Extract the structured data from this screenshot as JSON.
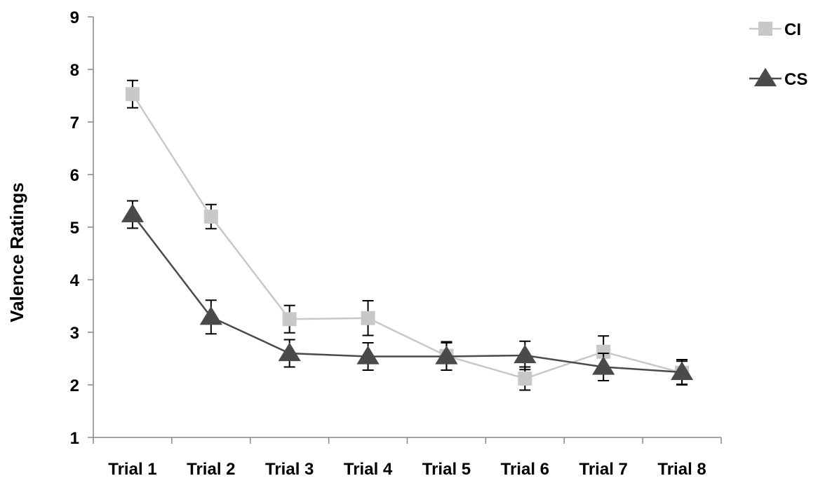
{
  "chart_data": {
    "type": "line",
    "title": "",
    "xlabel": "",
    "ylabel": "Valence Ratings",
    "ylim": [
      1,
      9
    ],
    "yticks": [
      1,
      2,
      3,
      4,
      5,
      6,
      7,
      8,
      9
    ],
    "grid": false,
    "legend_position": "top-right",
    "categories": [
      "Trial 1",
      "Trial 2",
      "Trial 3",
      "Trial 4",
      "Trial 5",
      "Trial 6",
      "Trial 7",
      "Trial 8"
    ],
    "series": [
      {
        "name": "CI",
        "marker": "square",
        "color": "#c8c8c8",
        "values": [
          7.53,
          5.2,
          3.25,
          3.27,
          2.55,
          2.12,
          2.63,
          2.23
        ],
        "errors": [
          0.26,
          0.23,
          0.26,
          0.33,
          0.27,
          0.22,
          0.3,
          0.22
        ]
      },
      {
        "name": "CS",
        "marker": "triangle",
        "color": "#4a4a4a",
        "values": [
          5.24,
          3.29,
          2.6,
          2.54,
          2.54,
          2.56,
          2.34,
          2.24
        ],
        "errors": [
          0.26,
          0.32,
          0.26,
          0.26,
          0.26,
          0.27,
          0.26,
          0.24
        ]
      }
    ]
  }
}
